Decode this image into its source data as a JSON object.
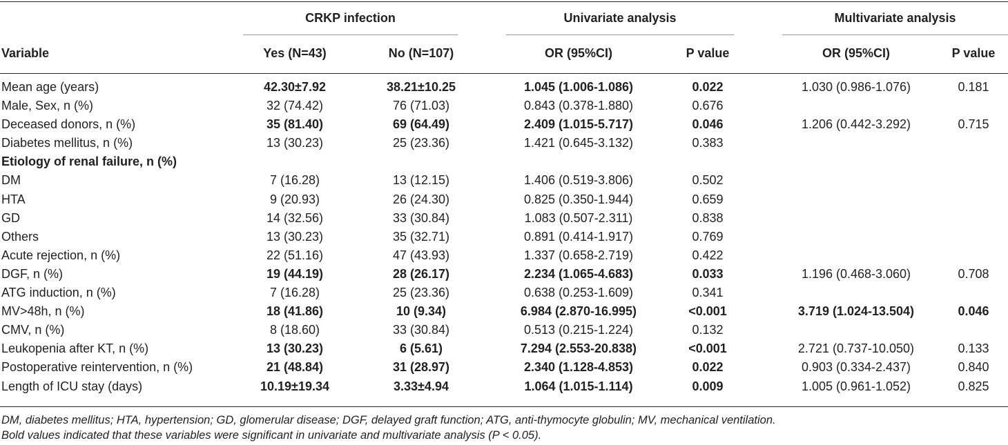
{
  "header": {
    "group_crkp": "CRKP infection",
    "group_uni": "Univariate analysis",
    "group_multi": "Multivariate analysis",
    "col_variable": "Variable",
    "col_yes": "Yes (N=43)",
    "col_no": "No (N=107)",
    "col_uni_or": "OR (95%CI)",
    "col_uni_p": "P value",
    "col_multi_or": "OR (95%CI)",
    "col_multi_p": "P value"
  },
  "rows": [
    {
      "variable": "Mean age (years)",
      "yes": "42.30±7.92",
      "no": "38.21±10.25",
      "uni_or": "1.045 (1.006-1.086)",
      "uni_p": "0.022",
      "multi_or": "1.030 (0.986-1.076)",
      "multi_p": "0.181",
      "bold_uni": true,
      "bold_multi": false,
      "section": false
    },
    {
      "variable": "Male, Sex, n (%)",
      "yes": "32 (74.42)",
      "no": "76 (71.03)",
      "uni_or": "0.843 (0.378-1.880)",
      "uni_p": "0.676",
      "multi_or": "",
      "multi_p": "",
      "bold_uni": false,
      "bold_multi": false,
      "section": false
    },
    {
      "variable": "Deceased donors, n (%)",
      "yes": "35 (81.40)",
      "no": "69 (64.49)",
      "uni_or": "2.409 (1.015-5.717)",
      "uni_p": "0.046",
      "multi_or": "1.206 (0.442-3.292)",
      "multi_p": "0.715",
      "bold_uni": true,
      "bold_multi": false,
      "section": false
    },
    {
      "variable": "Diabetes mellitus, n (%)",
      "yes": "13 (30.23)",
      "no": "25 (23.36)",
      "uni_or": "1.421 (0.645-3.132)",
      "uni_p": "0.383",
      "multi_or": "",
      "multi_p": "",
      "bold_uni": false,
      "bold_multi": false,
      "section": false
    },
    {
      "variable": "Etiology of renal failure, n (%)",
      "yes": "",
      "no": "",
      "uni_or": "",
      "uni_p": "",
      "multi_or": "",
      "multi_p": "",
      "bold_uni": false,
      "bold_multi": false,
      "section": true
    },
    {
      "variable": "DM",
      "yes": "7 (16.28)",
      "no": "13 (12.15)",
      "uni_or": "1.406 (0.519-3.806)",
      "uni_p": "0.502",
      "multi_or": "",
      "multi_p": "",
      "bold_uni": false,
      "bold_multi": false,
      "section": false
    },
    {
      "variable": "HTA",
      "yes": "9 (20.93)",
      "no": "26 (24.30)",
      "uni_or": "0.825 (0.350-1.944)",
      "uni_p": "0.659",
      "multi_or": "",
      "multi_p": "",
      "bold_uni": false,
      "bold_multi": false,
      "section": false
    },
    {
      "variable": "GD",
      "yes": "14 (32.56)",
      "no": "33 (30.84)",
      "uni_or": "1.083 (0.507-2.311)",
      "uni_p": "0.838",
      "multi_or": "",
      "multi_p": "",
      "bold_uni": false,
      "bold_multi": false,
      "section": false
    },
    {
      "variable": "Others",
      "yes": "13 (30.23)",
      "no": "35 (32.71)",
      "uni_or": "0.891 (0.414-1.917)",
      "uni_p": "0.769",
      "multi_or": "",
      "multi_p": "",
      "bold_uni": false,
      "bold_multi": false,
      "section": false
    },
    {
      "variable": "Acute rejection, n (%)",
      "yes": "22 (51.16)",
      "no": "47 (43.93)",
      "uni_or": "1.337 (0.658-2.719)",
      "uni_p": "0.422",
      "multi_or": "",
      "multi_p": "",
      "bold_uni": false,
      "bold_multi": false,
      "section": false
    },
    {
      "variable": "DGF, n (%)",
      "yes": "19 (44.19)",
      "no": "28 (26.17)",
      "uni_or": "2.234 (1.065-4.683)",
      "uni_p": "0.033",
      "multi_or": "1.196 (0.468-3.060)",
      "multi_p": "0.708",
      "bold_uni": true,
      "bold_multi": false,
      "section": false
    },
    {
      "variable": "ATG induction, n (%)",
      "yes": "7 (16.28)",
      "no": "25 (23.36)",
      "uni_or": "0.638 (0.253-1.609)",
      "uni_p": "0.341",
      "multi_or": "",
      "multi_p": "",
      "bold_uni": false,
      "bold_multi": false,
      "section": false
    },
    {
      "variable": "MV>48h, n (%)",
      "yes": "18 (41.86)",
      "no": "10 (9.34)",
      "uni_or": "6.984 (2.870-16.995)",
      "uni_p": "<0.001",
      "multi_or": "3.719 (1.024-13.504)",
      "multi_p": "0.046",
      "bold_uni": true,
      "bold_multi": true,
      "section": false
    },
    {
      "variable": "CMV, n (%)",
      "yes": "8 (18.60)",
      "no": "33 (30.84)",
      "uni_or": "0.513 (0.215-1.224)",
      "uni_p": "0.132",
      "multi_or": "",
      "multi_p": "",
      "bold_uni": false,
      "bold_multi": false,
      "section": false
    },
    {
      "variable": "Leukopenia after KT, n (%)",
      "yes": "13 (30.23)",
      "no": "6 (5.61)",
      "uni_or": "7.294 (2.553-20.838)",
      "uni_p": "<0.001",
      "multi_or": "2.721 (0.737-10.050)",
      "multi_p": "0.133",
      "bold_uni": true,
      "bold_multi": false,
      "section": false
    },
    {
      "variable": "Postoperative reintervention, n (%)",
      "yes": "21 (48.84)",
      "no": "31 (28.97)",
      "uni_or": "2.340 (1.128-4.853)",
      "uni_p": "0.022",
      "multi_or": "0.903 (0.334-2.437)",
      "multi_p": "0.840",
      "bold_uni": true,
      "bold_multi": false,
      "section": false
    },
    {
      "variable": "Length of ICU stay (days)",
      "yes": "10.19±19.34",
      "no": "3.33±4.94",
      "uni_or": "1.064 (1.015-1.114)",
      "uni_p": "0.009",
      "multi_or": "1.005 (0.961-1.052)",
      "multi_p": "0.825",
      "bold_uni": true,
      "bold_multi": false,
      "section": false
    }
  ],
  "footnotes": {
    "abbreviations": "DM, diabetes mellitus; HTA, hypertension; GD, glomerular disease; DGF, delayed graft function; ATG, anti-thymocyte globulin; MV, mechanical ventilation.",
    "bold_note": "Bold values indicated that these variables were significant in univariate and multivariate analysis (P < 0.05)."
  }
}
